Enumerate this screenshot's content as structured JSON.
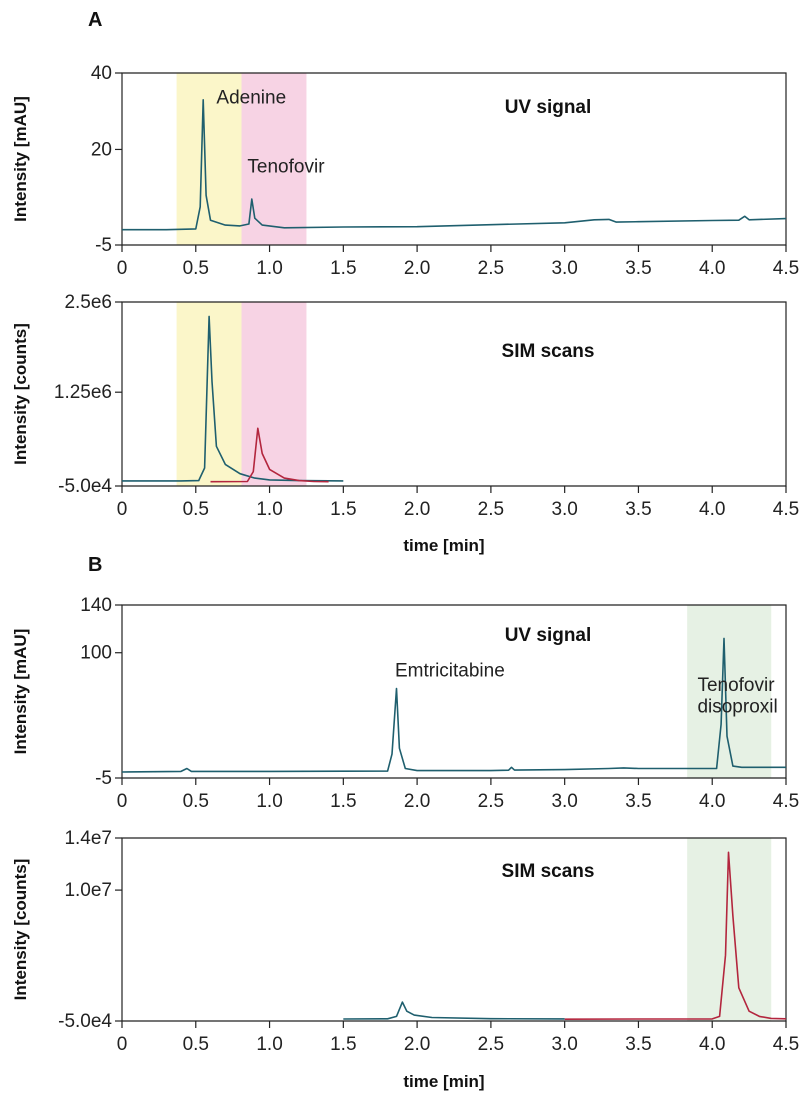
{
  "colors": {
    "uv_trace": "#1f5f6e",
    "sim_trace_1": "#1f5f6e",
    "sim_trace_2": "#b3263e",
    "band_yellow": "#fbf6c9",
    "band_pink": "#f7d3e4",
    "band_green": "#e6f1e4"
  },
  "panels": {
    "A": {
      "letter": "A"
    },
    "B": {
      "letter": "B"
    }
  },
  "chart_data": [
    {
      "id": "A-uv",
      "panel": "A",
      "type": "line",
      "signal_label": "UV signal",
      "ylabel": "Intensity [mAU]",
      "xlabel": "",
      "xlim": [
        0,
        4.5
      ],
      "ylim": [
        -5,
        40
      ],
      "xticks": [
        0,
        0.5,
        1.0,
        1.5,
        2.0,
        2.5,
        3.0,
        3.5,
        4.0,
        4.5
      ],
      "xtick_labels": [
        "0",
        "0.5",
        "1.0",
        "1.5",
        "2.0",
        "2.5",
        "3.0",
        "3.5",
        "4.0",
        "4.5"
      ],
      "yticks": [
        -5,
        20,
        40
      ],
      "ytick_labels": [
        "-5",
        "20",
        "40"
      ],
      "bands": [
        {
          "x0": 0.37,
          "x1": 0.81,
          "color": "band_yellow"
        },
        {
          "x0": 0.81,
          "x1": 1.25,
          "color": "band_pink"
        }
      ],
      "annotations": [
        {
          "text": "Adenine",
          "x": 0.64,
          "y": 32
        },
        {
          "text": "Tenofovir",
          "x": 0.85,
          "y": 14
        }
      ],
      "series": [
        {
          "color": "uv_trace",
          "points": [
            [
              0,
              -1
            ],
            [
              0.3,
              -1
            ],
            [
              0.5,
              -0.8
            ],
            [
              0.53,
              5
            ],
            [
              0.55,
              33
            ],
            [
              0.57,
              8
            ],
            [
              0.6,
              1.5
            ],
            [
              0.7,
              0.2
            ],
            [
              0.8,
              0
            ],
            [
              0.86,
              0.5
            ],
            [
              0.88,
              7
            ],
            [
              0.9,
              2
            ],
            [
              0.95,
              0.2
            ],
            [
              1.1,
              -0.5
            ],
            [
              1.5,
              -0.3
            ],
            [
              2.0,
              -0.2
            ],
            [
              2.5,
              0.3
            ],
            [
              3.0,
              0.8
            ],
            [
              3.2,
              1.6
            ],
            [
              3.3,
              1.7
            ],
            [
              3.35,
              1.0
            ],
            [
              3.5,
              1.1
            ],
            [
              4.0,
              1.4
            ],
            [
              4.18,
              1.5
            ],
            [
              4.22,
              2.5
            ],
            [
              4.25,
              1.6
            ],
            [
              4.5,
              1.9
            ]
          ]
        }
      ]
    },
    {
      "id": "A-sim",
      "panel": "A",
      "type": "line",
      "signal_label": "SIM scans",
      "ylabel": "Intensity [counts]",
      "xlabel": "time [min]",
      "xlim": [
        0,
        4.5
      ],
      "ylim": [
        -50000,
        2500000
      ],
      "xticks": [
        0,
        0.5,
        1.0,
        1.5,
        2.0,
        2.5,
        3.0,
        3.5,
        4.0,
        4.5
      ],
      "xtick_labels": [
        "0",
        "0.5",
        "1.0",
        "1.5",
        "2.0",
        "2.5",
        "3.0",
        "3.5",
        "4.0",
        "4.5"
      ],
      "yticks": [
        -50000,
        1250000,
        2500000
      ],
      "ytick_labels": [
        "-5.0e4",
        "1.25e6",
        "2.5e6"
      ],
      "bands": [
        {
          "x0": 0.37,
          "x1": 0.81,
          "color": "band_yellow"
        },
        {
          "x0": 0.81,
          "x1": 1.25,
          "color": "band_pink"
        }
      ],
      "annotations": [],
      "series": [
        {
          "color": "sim_trace_1",
          "points": [
            [
              0,
              20000
            ],
            [
              0.4,
              20000
            ],
            [
              0.52,
              25000
            ],
            [
              0.56,
              200000
            ],
            [
              0.59,
              2300000
            ],
            [
              0.61,
              1400000
            ],
            [
              0.64,
              500000
            ],
            [
              0.7,
              250000
            ],
            [
              0.8,
              120000
            ],
            [
              0.9,
              60000
            ],
            [
              1.0,
              35000
            ],
            [
              1.2,
              25000
            ],
            [
              1.5,
              20000
            ]
          ]
        },
        {
          "color": "sim_trace_2",
          "points": [
            [
              0.6,
              10000
            ],
            [
              0.85,
              12000
            ],
            [
              0.89,
              150000
            ],
            [
              0.92,
              750000
            ],
            [
              0.95,
              400000
            ],
            [
              1.0,
              180000
            ],
            [
              1.1,
              60000
            ],
            [
              1.2,
              25000
            ],
            [
              1.3,
              12000
            ],
            [
              1.4,
              10000
            ]
          ]
        }
      ]
    },
    {
      "id": "B-uv",
      "panel": "B",
      "type": "line",
      "signal_label": "UV signal",
      "ylabel": "Intensity [mAU]",
      "xlabel": "",
      "xlim": [
        0,
        4.5
      ],
      "ylim": [
        -5,
        140
      ],
      "xticks": [
        0,
        0.5,
        1.0,
        1.5,
        2.0,
        2.5,
        3.0,
        3.5,
        4.0,
        4.5
      ],
      "xtick_labels": [
        "0",
        "0.5",
        "1.0",
        "1.5",
        "2.0",
        "2.5",
        "3.0",
        "3.5",
        "4.0",
        "4.5"
      ],
      "yticks": [
        -5,
        100,
        140
      ],
      "ytick_labels": [
        "-5",
        "100",
        "140"
      ],
      "bands": [
        {
          "x0": 3.83,
          "x1": 4.4,
          "color": "band_green"
        }
      ],
      "annotations": [
        {
          "text": "Emtricitabine",
          "x": 1.85,
          "y": 80
        },
        {
          "text": "Tenofovir",
          "x": 3.9,
          "y": 68
        },
        {
          "text": "disoproxil",
          "x": 3.9,
          "y": 50
        }
      ],
      "series": [
        {
          "color": "uv_trace",
          "points": [
            [
              0,
              0
            ],
            [
              0.4,
              0.5
            ],
            [
              0.44,
              3
            ],
            [
              0.47,
              0.5
            ],
            [
              1.0,
              0.5
            ],
            [
              1.5,
              0.7
            ],
            [
              1.8,
              0.8
            ],
            [
              1.83,
              15
            ],
            [
              1.86,
              70
            ],
            [
              1.88,
              20
            ],
            [
              1.92,
              3
            ],
            [
              2.0,
              1.2
            ],
            [
              2.5,
              1.2
            ],
            [
              2.62,
              1.5
            ],
            [
              2.64,
              4
            ],
            [
              2.66,
              1.6
            ],
            [
              3.0,
              2
            ],
            [
              3.3,
              3
            ],
            [
              3.4,
              3.5
            ],
            [
              3.5,
              3
            ],
            [
              3.7,
              3
            ],
            [
              4.03,
              3
            ],
            [
              4.06,
              40
            ],
            [
              4.08,
              112
            ],
            [
              4.1,
              30
            ],
            [
              4.14,
              5
            ],
            [
              4.2,
              4
            ],
            [
              4.5,
              4
            ]
          ]
        }
      ]
    },
    {
      "id": "B-sim",
      "panel": "B",
      "type": "line",
      "signal_label": "SIM scans",
      "ylabel": "Intensity [counts]",
      "xlabel": "time [min]",
      "xlim": [
        0,
        4.5
      ],
      "ylim": [
        -50000,
        14000000
      ],
      "xticks": [
        0,
        0.5,
        1.0,
        1.5,
        2.0,
        2.5,
        3.0,
        3.5,
        4.0,
        4.5
      ],
      "xtick_labels": [
        "0",
        "0.5",
        "1.0",
        "1.5",
        "2.0",
        "2.5",
        "3.0",
        "3.5",
        "4.0",
        "4.5"
      ],
      "yticks": [
        -50000,
        10000000,
        14000000
      ],
      "ytick_labels": [
        "-5.0e4",
        "1.0e7",
        "1.4e7"
      ],
      "bands": [
        {
          "x0": 3.83,
          "x1": 4.4,
          "color": "band_green"
        }
      ],
      "annotations": [],
      "series": [
        {
          "color": "sim_trace_1",
          "points": [
            [
              1.5,
              100000
            ],
            [
              1.8,
              120000
            ],
            [
              1.86,
              300000
            ],
            [
              1.9,
              1400000
            ],
            [
              1.93,
              700000
            ],
            [
              1.98,
              400000
            ],
            [
              2.1,
              220000
            ],
            [
              2.5,
              130000
            ],
            [
              3.0,
              110000
            ]
          ]
        },
        {
          "color": "sim_trace_2",
          "points": [
            [
              3.0,
              90000
            ],
            [
              3.5,
              100000
            ],
            [
              4.0,
              110000
            ],
            [
              4.05,
              300000
            ],
            [
              4.09,
              5000000
            ],
            [
              4.11,
              12900000
            ],
            [
              4.14,
              8000000
            ],
            [
              4.18,
              2500000
            ],
            [
              4.25,
              700000
            ],
            [
              4.32,
              300000
            ],
            [
              4.4,
              150000
            ],
            [
              4.5,
              120000
            ]
          ]
        }
      ]
    }
  ]
}
